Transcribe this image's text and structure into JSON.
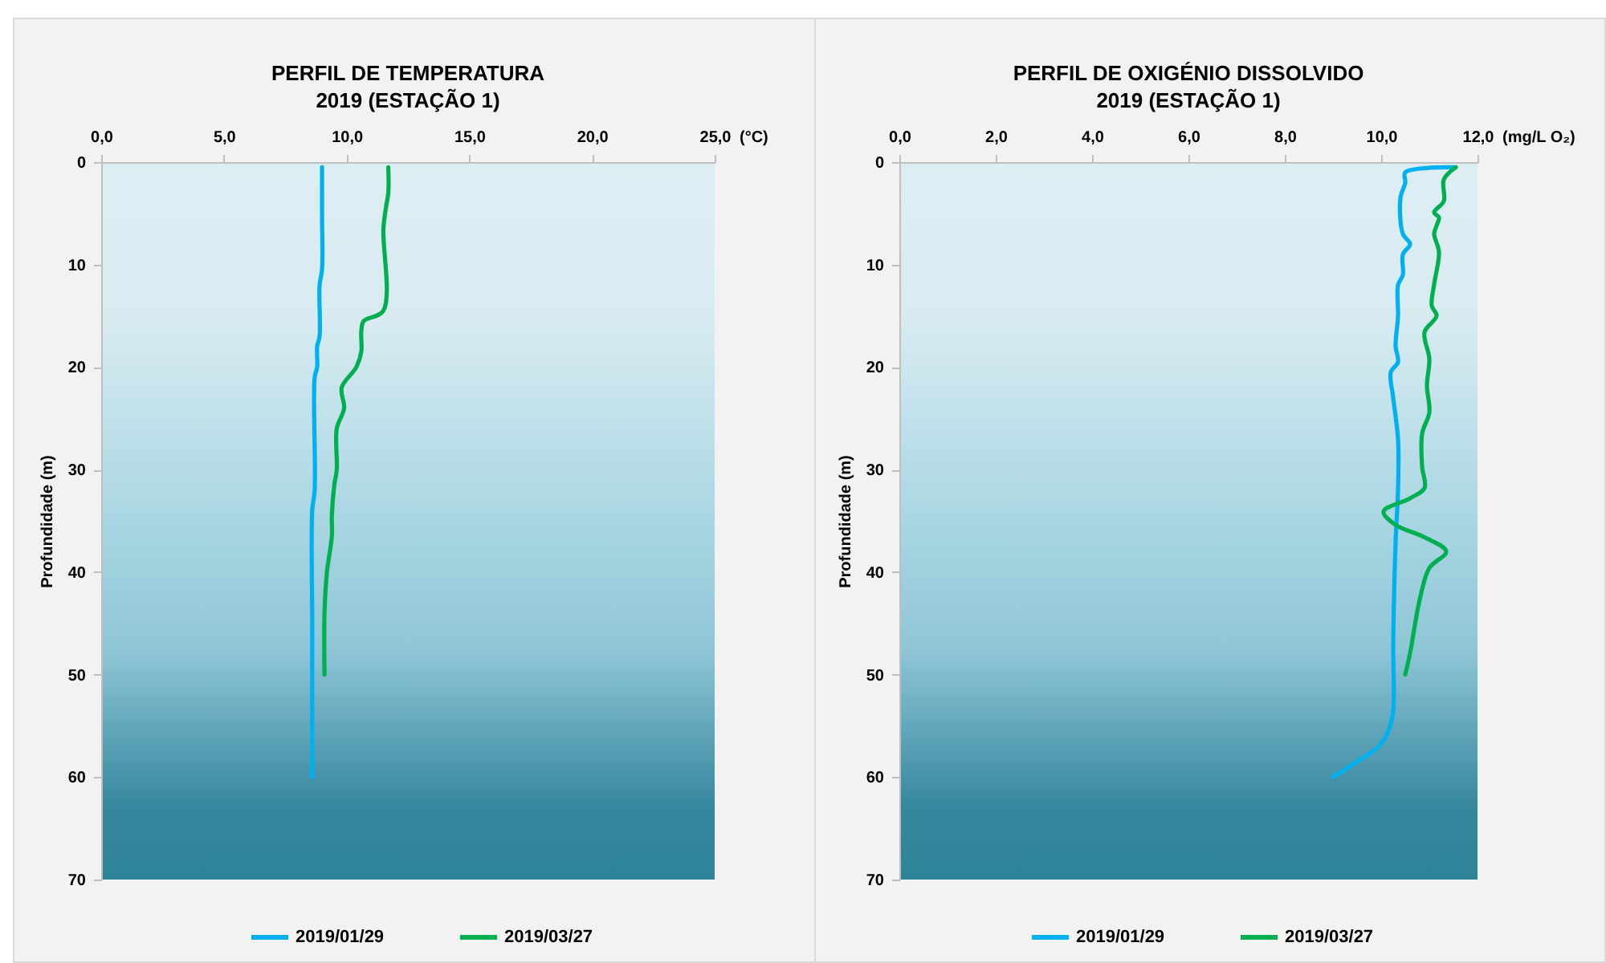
{
  "chart_data": [
    {
      "type": "line",
      "title": "PERFIL DE TEMPERATURA",
      "subtitle": "2019 (ESTAÇÃO 1)",
      "xlabel": "(°C)",
      "ylabel": "Profundidade (m)",
      "xlim": [
        0,
        25
      ],
      "xticks": [
        {
          "value": 0,
          "label": "0,0"
        },
        {
          "value": 5,
          "label": "5,0"
        },
        {
          "value": 10,
          "label": "10,0"
        },
        {
          "value": 15,
          "label": "15,0"
        },
        {
          "value": 20,
          "label": "20,0"
        },
        {
          "value": 25,
          "label": "25,0"
        }
      ],
      "ylim": [
        70,
        0
      ],
      "yticks": [
        0,
        10,
        20,
        30,
        40,
        50,
        60,
        70
      ],
      "legend": "bottom",
      "series": [
        {
          "name": "2019/01/29",
          "color": "#00b0f0",
          "x": [
            9.0,
            9.0,
            9.0,
            8.9,
            8.9,
            8.8,
            8.8,
            8.7,
            8.7,
            8.6,
            8.6,
            8.6
          ],
          "values": [
            0.5,
            5,
            10.5,
            12,
            17,
            18,
            20,
            21,
            32,
            34,
            45,
            60
          ]
        },
        {
          "name": "2019/03/27",
          "color": "#00b050",
          "x": [
            11.7,
            11.7,
            11.6,
            11.5,
            11.5,
            10.7,
            10.6,
            10.6,
            10.4,
            9.8,
            9.9,
            9.6,
            9.6,
            9.5,
            9.4,
            9.4,
            9.2,
            9.1,
            9.1
          ],
          "values": [
            0.5,
            3,
            4.5,
            6.5,
            14.5,
            15.5,
            16.5,
            18.5,
            20,
            22,
            24,
            26,
            30,
            31.5,
            34.5,
            36.5,
            40,
            44,
            50
          ]
        }
      ]
    },
    {
      "type": "line",
      "title": "PERFIL DE OXIGÉNIO DISSOLVIDO",
      "subtitle": "2019 (ESTAÇÃO 1)",
      "xlabel": "(mg/L O₂)",
      "ylabel": "Profundidade (m)",
      "xlim": [
        0,
        12
      ],
      "xticks": [
        {
          "value": 0,
          "label": "0,0"
        },
        {
          "value": 2,
          "label": "2,0"
        },
        {
          "value": 4,
          "label": "4,0"
        },
        {
          "value": 6,
          "label": "6,0"
        },
        {
          "value": 8,
          "label": "8,0"
        },
        {
          "value": 10,
          "label": "10,0"
        },
        {
          "value": 12,
          "label": "12,0"
        }
      ],
      "ylim": [
        70,
        0
      ],
      "yticks": [
        0,
        10,
        20,
        30,
        40,
        50,
        60,
        70
      ],
      "legend": "bottom",
      "series": [
        {
          "name": "2019/01/29",
          "color": "#00b0f0",
          "x": [
            11.5,
            10.5,
            10.5,
            10.4,
            10.45,
            10.6,
            10.45,
            10.45,
            10.35,
            10.35,
            10.3,
            10.35,
            10.2,
            10.25,
            10.35,
            10.35,
            10.3,
            10.25,
            10.25,
            10.15,
            9.95,
            9.5,
            9.0
          ],
          "values": [
            0.5,
            1,
            2,
            3.5,
            7,
            8,
            9,
            11,
            12,
            15,
            18,
            19.5,
            20.5,
            23,
            27,
            32,
            37,
            47,
            53.5,
            55.5,
            57,
            58.5,
            60
          ]
        },
        {
          "name": "2019/03/27",
          "color": "#00b050",
          "x": [
            11.55,
            11.3,
            11.3,
            11.1,
            11.2,
            11.15,
            11.1,
            11.2,
            11.1,
            11.05,
            11.15,
            10.9,
            11.0,
            10.95,
            11.0,
            10.85,
            10.85,
            10.9,
            10.6,
            10.05,
            10.3,
            10.9,
            11.35,
            11.0,
            10.8,
            10.6,
            10.5
          ],
          "values": [
            0.5,
            1.7,
            3.8,
            4.9,
            5.4,
            6.2,
            7,
            8.8,
            11.9,
            14,
            15,
            16.6,
            19.2,
            21.8,
            24.4,
            26.5,
            29.7,
            31.8,
            32.8,
            34.1,
            35.4,
            36.6,
            38,
            39.6,
            42.7,
            47.9,
            50
          ]
        }
      ]
    }
  ]
}
